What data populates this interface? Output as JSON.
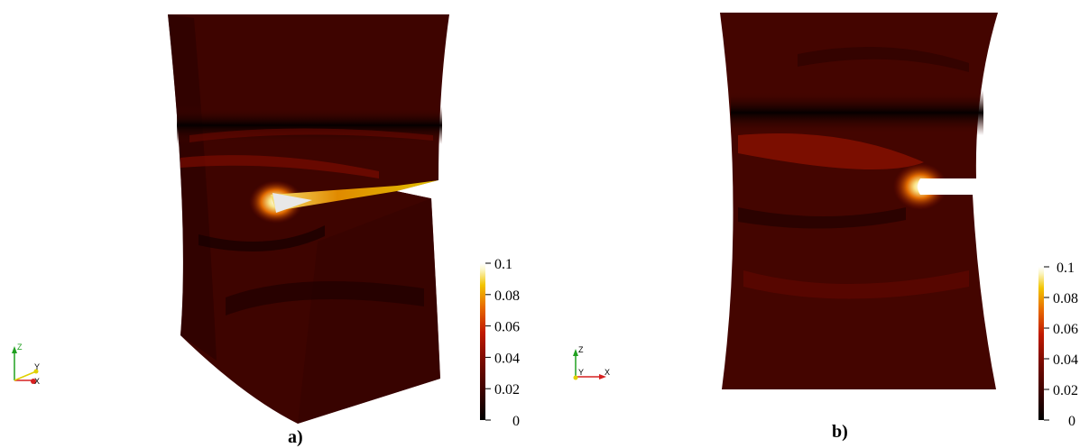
{
  "panels": [
    {
      "caption": "a)",
      "colorbar": {
        "ticks": [
          "0.1",
          "0.08",
          "0.06",
          "0.04",
          "0.02",
          "0"
        ]
      },
      "orientation_axes": {
        "labels": [
          "Z",
          "Y",
          "X"
        ]
      }
    },
    {
      "caption": "b)",
      "colorbar": {
        "ticks": [
          "0.1",
          "0.08",
          "0.06",
          "0.04",
          "0.02",
          "0"
        ]
      },
      "orientation_axes": {
        "labels": [
          "Z",
          "Y",
          "X"
        ]
      }
    }
  ],
  "colors": {
    "colormap": [
      "#000000",
      "#3a0200",
      "#7a0a00",
      "#c21a00",
      "#e86a00",
      "#f2c400",
      "#fbf6c8",
      "#ffffff"
    ],
    "axis_x": "#d62020",
    "axis_y": "#e0d000",
    "axis_z": "#20a020"
  }
}
